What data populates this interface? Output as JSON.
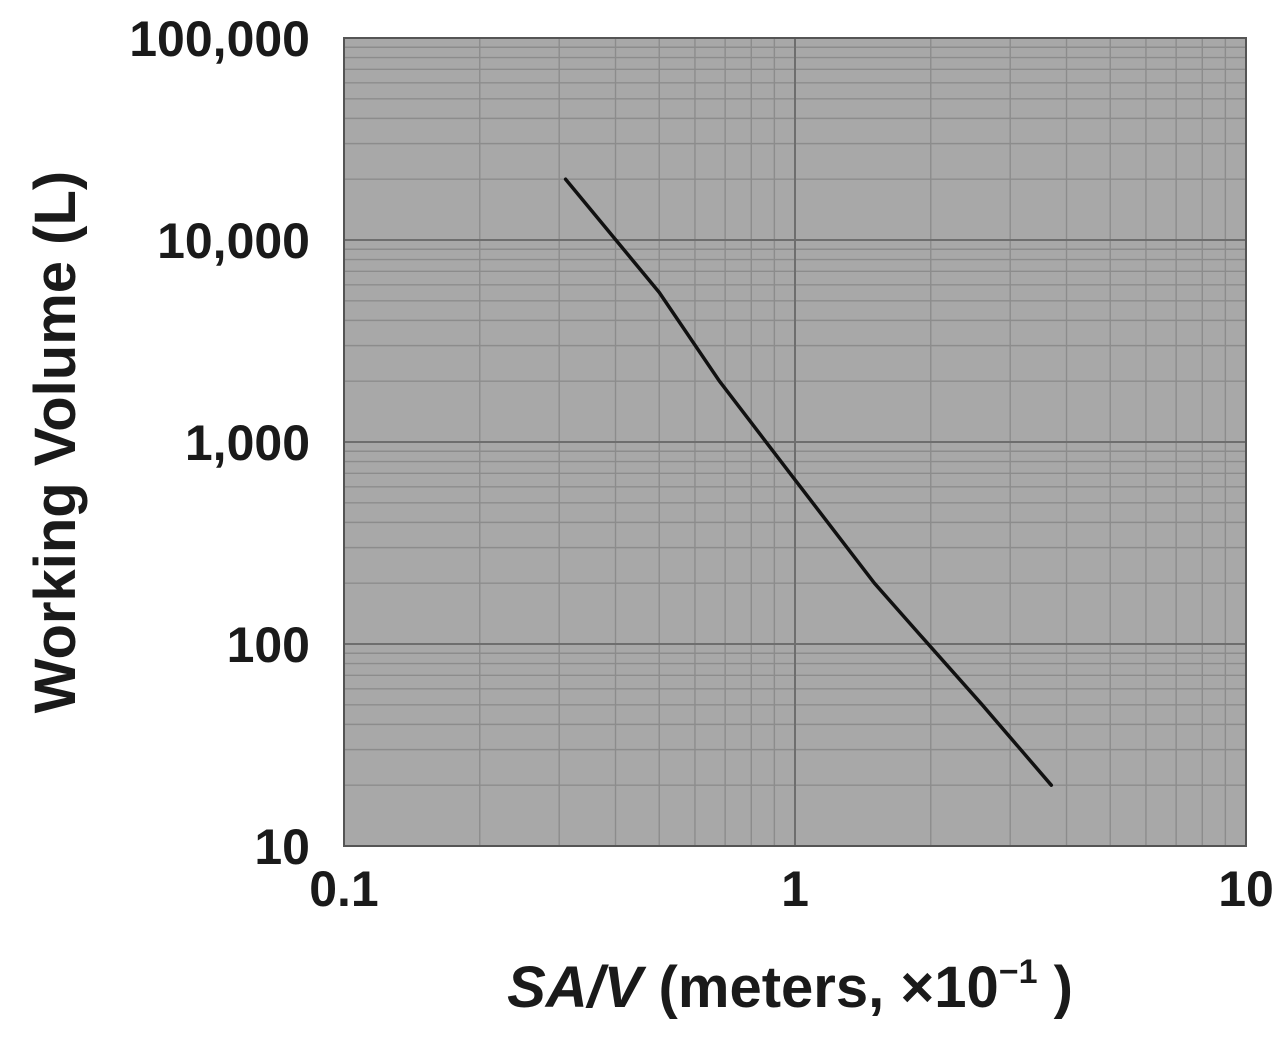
{
  "chart_data": {
    "type": "line",
    "title": "",
    "xlabel": {
      "italic_part": "SA/V",
      "rest": " (meters, ×10",
      "superscript": "−1",
      "close": " )"
    },
    "ylabel": "Working Volume (L)",
    "x_scale": "log",
    "y_scale": "log",
    "xlim": [
      0.1,
      10
    ],
    "ylim": [
      10,
      100000
    ],
    "x_ticks": [
      {
        "value": 0.1,
        "label": "0.1"
      },
      {
        "value": 1,
        "label": "1"
      },
      {
        "value": 10,
        "label": "10"
      }
    ],
    "y_ticks": [
      {
        "value": 10,
        "label": "10"
      },
      {
        "value": 100,
        "label": "100"
      },
      {
        "value": 1000,
        "label": "1,000"
      },
      {
        "value": 10000,
        "label": "10,000"
      },
      {
        "value": 100000,
        "label": "100,000"
      }
    ],
    "grid": true,
    "plot_background": "#a8a8a8",
    "grid_color": "#8c8c8c",
    "line_color": "#111111",
    "series": [
      {
        "x": [
          0.31,
          0.5,
          0.68,
          1.0,
          1.5,
          1.9,
          2.6,
          3.7
        ],
        "y": [
          20000,
          5500,
          2000,
          650,
          200,
          110,
          50,
          20
        ]
      }
    ]
  }
}
